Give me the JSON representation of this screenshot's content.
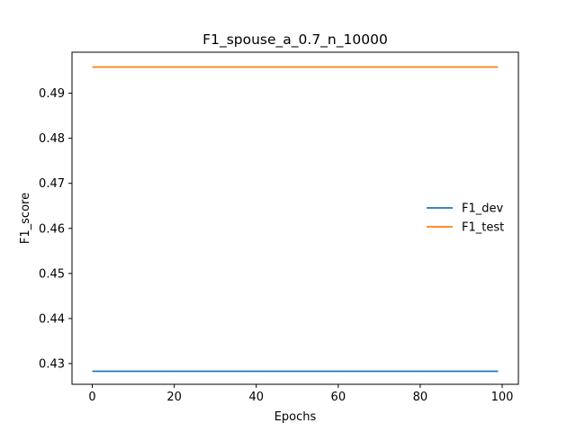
{
  "chart_data": {
    "type": "line",
    "title": "F1_spouse_a_0.7_n_10000",
    "xlabel": "Epochs",
    "ylabel": "F1_score",
    "xlim": [
      -4.95,
      103.95
    ],
    "ylim": [
      0.4254,
      0.4991
    ],
    "x_ticks": [
      0,
      20,
      40,
      60,
      80,
      100
    ],
    "y_ticks": [
      0.43,
      0.44,
      0.45,
      0.46,
      0.47,
      0.48,
      0.49
    ],
    "legend_position": "center-right",
    "grid": false,
    "x": [
      0,
      99
    ],
    "series": [
      {
        "name": "F1_dev",
        "color": "#1f77b4",
        "values": [
          0.4283,
          0.4283
        ]
      },
      {
        "name": "F1_test",
        "color": "#ff7f0e",
        "values": [
          0.4958,
          0.4958
        ]
      }
    ]
  }
}
